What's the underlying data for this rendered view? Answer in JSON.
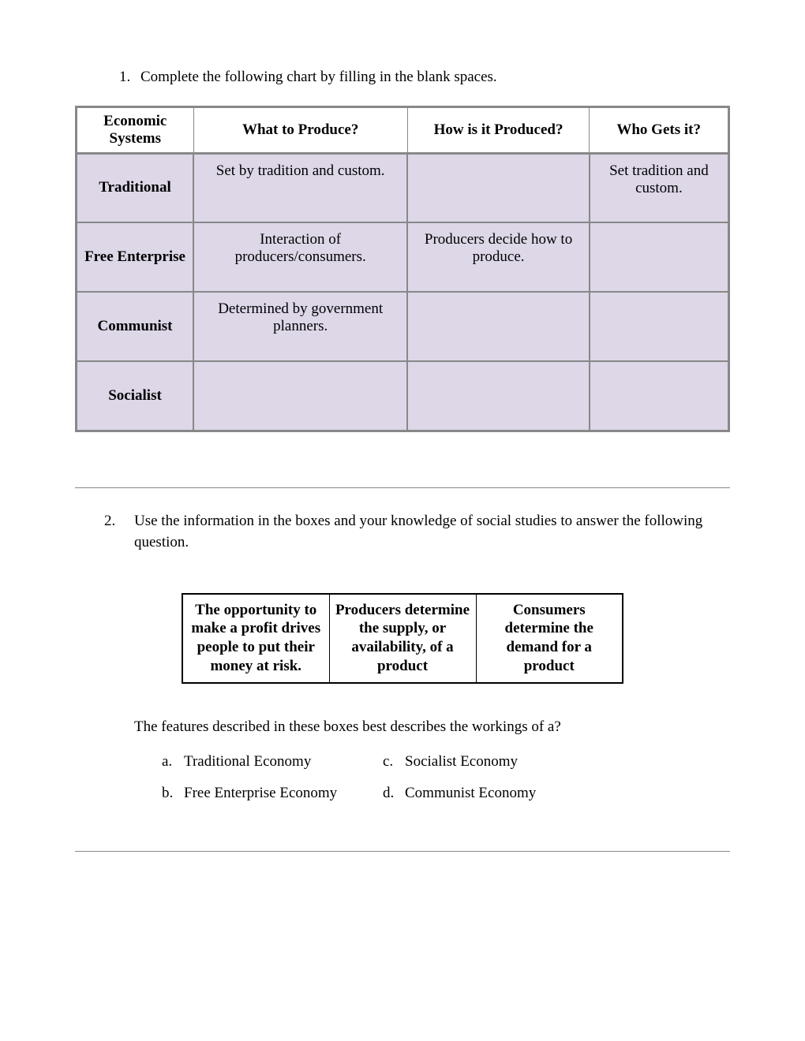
{
  "question1": {
    "number": "1.",
    "text": "Complete the following chart by filling in the blank spaces."
  },
  "chart": {
    "headers": [
      "Economic Systems",
      "What to Produce?",
      "How is it Produced?",
      "Who Gets it?"
    ],
    "rows": [
      {
        "label": "Traditional",
        "cells": [
          "Set by tradition and custom.",
          "",
          "Set tradition and custom."
        ]
      },
      {
        "label": "Free Enterprise",
        "cells": [
          "Interaction of producers/consumers.",
          "Producers decide how to produce.",
          ""
        ]
      },
      {
        "label": "Communist",
        "cells": [
          "Determined by government planners.",
          "",
          ""
        ]
      },
      {
        "label": "Socialist",
        "cells": [
          "",
          "",
          ""
        ]
      }
    ]
  },
  "question2": {
    "number": "2.",
    "text": "Use the information in the boxes and your knowledge of social studies to answer the following question."
  },
  "boxes": [
    "The opportunity to make a profit drives people to put their money at risk.",
    "Producers determine the supply, or availability, of a product",
    "Consumers determine the demand for a product"
  ],
  "subQuestion": "The features described in these boxes best describes the workings of a?",
  "options": {
    "a": {
      "letter": "a.",
      "text": "Traditional Economy"
    },
    "b": {
      "letter": "b.",
      "text": "Free Enterprise Economy"
    },
    "c": {
      "letter": "c.",
      "text": "Socialist Economy"
    },
    "d": {
      "letter": "d.",
      "text": "Communist Economy"
    }
  }
}
